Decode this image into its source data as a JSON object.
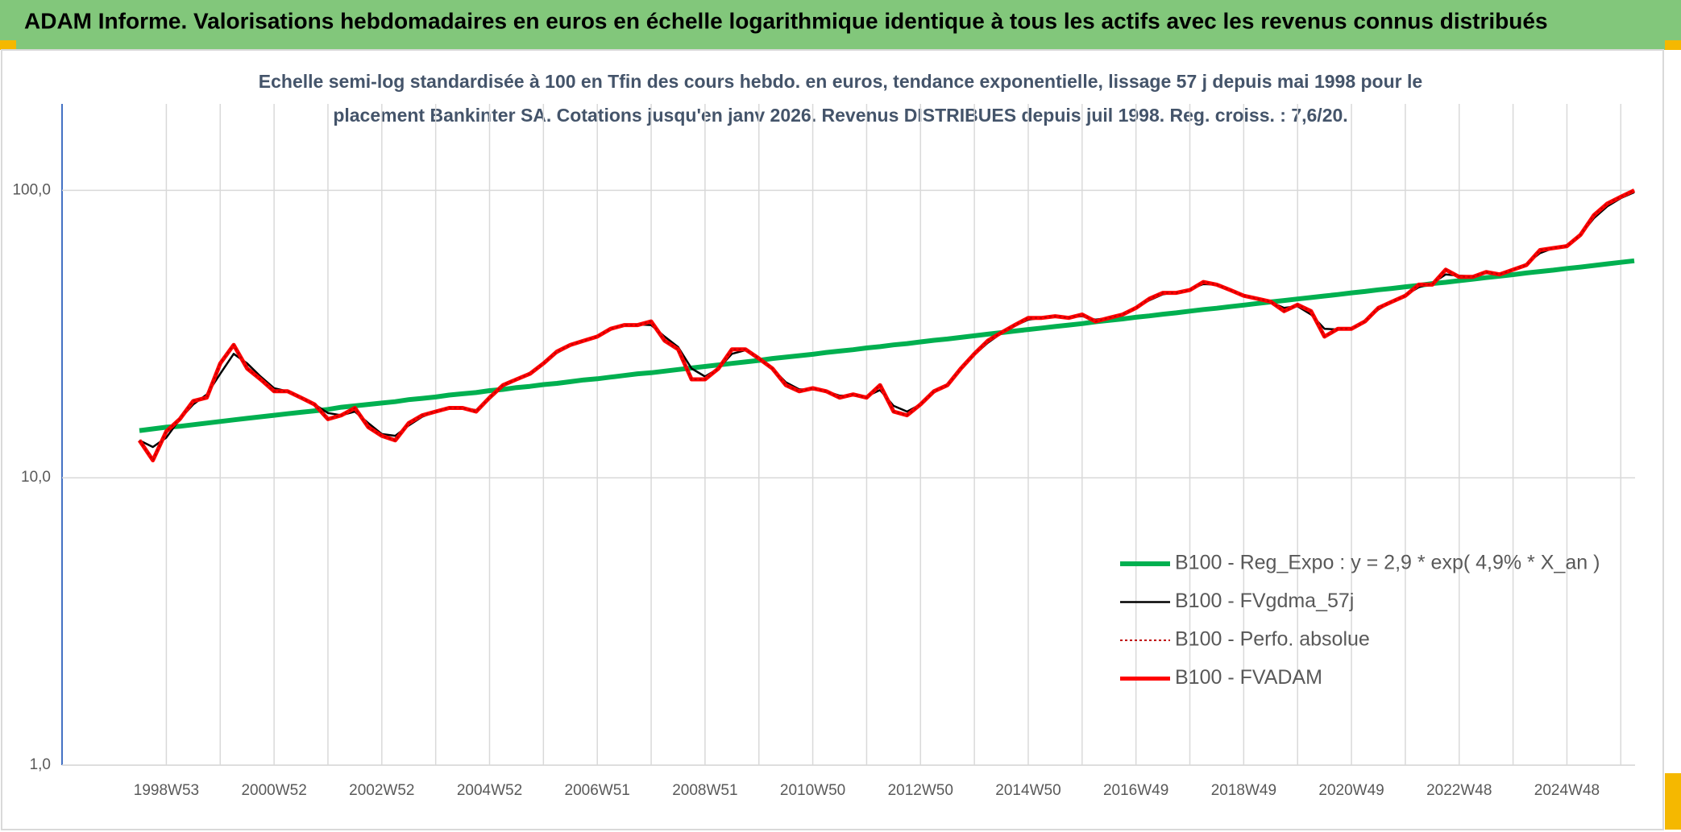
{
  "chart_data": {
    "type": "line",
    "title": "ADAM Informe. Valorisations hebdomadaires en euros en échelle logarithmique identique à tous les actifs avec les revenus connus distribués",
    "subtitle_lines": [
      "Echelle semi-log standardisée à 100 en Tfin des cours hebdo. en euros, tendance exponentielle, lissage 57 j depuis mai 1998 pour le",
      "placement Bankinter SA. Cotations jusqu'en janv 2026. Revenus DISTRIBUES depuis juil 1998. Reg. croiss. : 7,6/20."
    ],
    "categories": [
      null,
      null,
      "1998W53",
      null,
      null,
      null,
      null,
      null,
      null,
      null,
      "2000W52",
      null,
      null,
      null,
      null,
      null,
      null,
      null,
      "2002W52",
      null,
      null,
      null,
      null,
      null,
      null,
      null,
      "2004W52",
      null,
      null,
      null,
      null,
      null,
      null,
      null,
      "2006W51",
      null,
      null,
      null,
      null,
      null,
      null,
      null,
      "2008W51",
      null,
      null,
      null,
      null,
      null,
      null,
      null,
      "2010W50",
      null,
      null,
      null,
      null,
      null,
      null,
      null,
      "2012W50",
      null,
      null,
      null,
      null,
      null,
      null,
      null,
      "2014W50",
      null,
      null,
      null,
      null,
      null,
      null,
      null,
      "2016W49",
      null,
      null,
      null,
      null,
      null,
      null,
      null,
      "2018W49",
      null,
      null,
      null,
      null,
      null,
      null,
      null,
      "2020W49",
      null,
      null,
      null,
      null,
      null,
      null,
      null,
      "2022W48",
      null,
      null,
      null,
      null,
      null,
      null,
      null,
      "2024W48",
      null,
      null,
      null,
      null,
      null
    ],
    "log_scale": true,
    "grid": true,
    "legend_position": "right",
    "ylim": [
      1,
      200
    ],
    "yticks": [
      {
        "value": 1,
        "label": "1,0"
      },
      {
        "value": 10,
        "label": "10,0"
      },
      {
        "value": 100,
        "label": "100,0"
      }
    ],
    "series": [
      {
        "name": "B100 - Reg_Expo : y = 2,9 * exp( 4,9% *  X_an )",
        "color": "#00b050",
        "line_style": "solid",
        "values": [
          14.6,
          14.8,
          15.0,
          15.1,
          15.3,
          15.5,
          15.7,
          15.9,
          16.1,
          16.3,
          16.5,
          16.7,
          16.9,
          17.1,
          17.3,
          17.6,
          17.8,
          18.0,
          18.2,
          18.4,
          18.7,
          18.9,
          19.1,
          19.4,
          19.6,
          19.8,
          20.1,
          20.3,
          20.6,
          20.8,
          21.1,
          21.3,
          21.6,
          21.9,
          22.1,
          22.4,
          22.7,
          23.0,
          23.2,
          23.5,
          23.8,
          24.1,
          24.4,
          24.7,
          25.0,
          25.3,
          25.6,
          26.0,
          26.3,
          26.6,
          26.9,
          27.3,
          27.6,
          27.9,
          28.3,
          28.6,
          29.0,
          29.3,
          29.7,
          30.1,
          30.4,
          30.8,
          31.2,
          31.6,
          32.0,
          32.4,
          32.8,
          33.2,
          33.6,
          34.0,
          34.4,
          34.9,
          35.3,
          35.7,
          36.2,
          36.6,
          37.1,
          37.5,
          38.0,
          38.5,
          38.9,
          39.4,
          39.9,
          40.4,
          40.9,
          41.4,
          41.9,
          42.4,
          42.9,
          43.4,
          44.0,
          44.5,
          45.1,
          45.6,
          46.2,
          46.7,
          47.4,
          47.9,
          48.5,
          49.1,
          49.7,
          50.3,
          50.9,
          51.6,
          52.2,
          52.8,
          53.5,
          54.1,
          54.8,
          55.5,
          56.2,
          56.9
        ]
      },
      {
        "name": "B100 - FVgdma_57j",
        "color": "#000000",
        "line_style": "solid",
        "values": [
          13.5,
          12.8,
          13.8,
          16,
          18,
          19.5,
          23,
          27,
          25,
          22.5,
          20.5,
          20,
          19,
          18,
          16.8,
          16.5,
          17,
          15.5,
          14.2,
          14,
          15.2,
          16.3,
          17,
          17.4,
          17.5,
          17.2,
          18.8,
          20.8,
          22,
          23.2,
          25,
          27.2,
          28.8,
          30,
          31.2,
          32.8,
          33.8,
          34.2,
          34,
          31,
          28.5,
          24,
          22.5,
          24,
          27,
          27.8,
          26.2,
          24,
          21.5,
          20.3,
          20.3,
          20,
          19.3,
          19.3,
          19.2,
          20.2,
          17.8,
          17,
          18,
          19.8,
          21.2,
          23.8,
          26.8,
          29.5,
          31.8,
          33.8,
          35.5,
          36,
          36.3,
          36.2,
          36.5,
          35.5,
          36,
          37,
          39,
          41.5,
          43.5,
          44.2,
          45.3,
          47.2,
          47,
          45.2,
          43.3,
          42,
          40.8,
          39,
          39.5,
          37,
          33,
          32.8,
          33.2,
          35,
          38.5,
          41,
          43.2,
          46,
          47.5,
          51,
          50.5,
          50.2,
          51.5,
          51.3,
          53,
          55.5,
          60.5,
          63,
          64.5,
          70,
          80,
          88,
          94,
          98.5
        ]
      },
      {
        "name": "B100 - Perfo. absolue",
        "color": "#c00000",
        "line_style": "dotted",
        "values": [
          13.5,
          11.5,
          14.5,
          16,
          18.5,
          19,
          25,
          29,
          24,
          22,
          20,
          20,
          19,
          18,
          16,
          16.5,
          17.5,
          15,
          14,
          13.5,
          15.5,
          16.5,
          17,
          17.5,
          17.5,
          17,
          19,
          21,
          22,
          23,
          25,
          27.5,
          29,
          30,
          31,
          33,
          34,
          34,
          35,
          30,
          28,
          22,
          22,
          24,
          28,
          28,
          26,
          24,
          21,
          20,
          20.5,
          20,
          19,
          19.5,
          19,
          21,
          17,
          16.5,
          18,
          20,
          21,
          24,
          27,
          30,
          32,
          34,
          36,
          36,
          36.5,
          36,
          37,
          35,
          36,
          37,
          39,
          42,
          44,
          44,
          45,
          48,
          47,
          45,
          43,
          42,
          41,
          38,
          40,
          38,
          31,
          33,
          33,
          35,
          39,
          41,
          43,
          47,
          47,
          53,
          50,
          50,
          52,
          51,
          53,
          55,
          62,
          63,
          64,
          70,
          82,
          90,
          95,
          100
        ]
      },
      {
        "name": "B100 - FVADAM",
        "color": "#ff0000",
        "line_style": "solid",
        "values": [
          13.5,
          11.5,
          14.5,
          16,
          18.5,
          19,
          25,
          29,
          24,
          22,
          20,
          20,
          19,
          18,
          16,
          16.5,
          17.5,
          15,
          14,
          13.5,
          15.5,
          16.5,
          17,
          17.5,
          17.5,
          17,
          19,
          21,
          22,
          23,
          25,
          27.5,
          29,
          30,
          31,
          33,
          34,
          34,
          35,
          30,
          28,
          22,
          22,
          24,
          28,
          28,
          26,
          24,
          21,
          20,
          20.5,
          20,
          19,
          19.5,
          19,
          21,
          17,
          16.5,
          18,
          20,
          21,
          24,
          27,
          30,
          32,
          34,
          36,
          36,
          36.5,
          36,
          37,
          35,
          36,
          37,
          39,
          42,
          44,
          44,
          45,
          48,
          47,
          45,
          43,
          42,
          41,
          38,
          40,
          38,
          31,
          33,
          33,
          35,
          39,
          41,
          43,
          47,
          47,
          53,
          50,
          50,
          52,
          51,
          53,
          55,
          62,
          63,
          64,
          70,
          82,
          90,
          95,
          100
        ]
      }
    ]
  }
}
